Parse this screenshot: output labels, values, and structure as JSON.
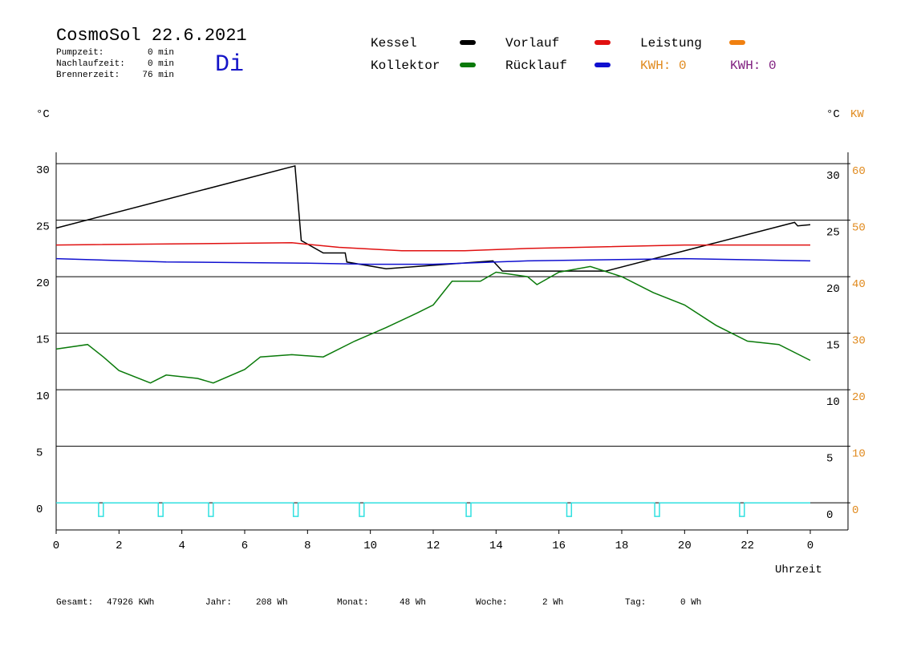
{
  "header": {
    "title": "CosmoSol 22.6.2021",
    "day": "Di",
    "stats": [
      {
        "label": "Pumpzeit:",
        "value": "0 min"
      },
      {
        "label": "Nachlaufzeit:",
        "value": "0 min"
      },
      {
        "label": "Brennerzeit:",
        "value": "76 min"
      }
    ],
    "kwh": [
      {
        "text": "KWH: 0",
        "color": "#e08a1e"
      },
      {
        "text": "KWH: 0",
        "color": "#802080"
      }
    ]
  },
  "chart_data": {
    "type": "line",
    "y_unit": "°C",
    "y2_unit_left": "°C",
    "y2_unit": "KW",
    "x_label": "Uhrzeit",
    "xlim": [
      0,
      25.2
    ],
    "ylim": [
      -2.4,
      31
    ],
    "y2lim": [
      -4.8,
      62
    ],
    "xticks": [
      0,
      2,
      4,
      6,
      8,
      10,
      12,
      14,
      16,
      18,
      20,
      22,
      {
        "value": 24,
        "label": "0"
      }
    ],
    "yticks": [
      0,
      5,
      10,
      15,
      20,
      25,
      30
    ],
    "y2ticks": [
      0,
      10,
      20,
      30,
      40,
      50,
      60
    ],
    "grid": true,
    "series": [
      {
        "name": "Kessel",
        "color": "#000000",
        "x": [
          0,
          7.6,
          7.8,
          8.5,
          9.2,
          9.25,
          10.5,
          13.9,
          14.2,
          17.5,
          23.5,
          23.6,
          24
        ],
        "values": [
          24.3,
          29.8,
          23.2,
          22.1,
          22.1,
          21.3,
          20.7,
          21.4,
          20.5,
          20.5,
          24.8,
          24.5,
          24.6
        ]
      },
      {
        "name": "Kollektor",
        "color": "#0a7a0a",
        "x": [
          0,
          1,
          1.5,
          2,
          3,
          3.5,
          4.5,
          5,
          6,
          6.5,
          7.5,
          8.5,
          9.5,
          10.5,
          11.5,
          12,
          12.6,
          13.5,
          14,
          15,
          15.3,
          16,
          17,
          18,
          19,
          20,
          21,
          22,
          23,
          24
        ],
        "values": [
          13.6,
          14.0,
          12.9,
          11.7,
          10.6,
          11.3,
          11.0,
          10.6,
          11.8,
          12.9,
          13.1,
          12.9,
          14.3,
          15.5,
          16.8,
          17.5,
          19.6,
          19.6,
          20.4,
          20.0,
          19.3,
          20.4,
          20.9,
          20.0,
          18.6,
          17.5,
          15.7,
          14.3,
          14.0,
          12.6
        ]
      },
      {
        "name": "Vorlauf",
        "color": "#e01010",
        "x": [
          0,
          7.5,
          9,
          11,
          13,
          15,
          20,
          24
        ],
        "values": [
          22.8,
          23.0,
          22.6,
          22.3,
          22.3,
          22.5,
          22.8,
          22.8
        ]
      },
      {
        "name": "Rücklauf",
        "color": "#1010d0",
        "x": [
          0,
          3.5,
          8,
          10,
          12,
          15,
          20,
          24
        ],
        "values": [
          21.6,
          21.3,
          21.2,
          21.1,
          21.1,
          21.4,
          21.6,
          21.4
        ]
      },
      {
        "name": "Leistung",
        "color": "#f08010",
        "x": [],
        "values": []
      },
      {
        "color": "#30e0e0",
        "x": [
          0,
          1.35,
          1.35,
          1.5,
          1.5,
          3.25,
          3.25,
          3.4,
          3.4,
          4.85,
          4.85,
          5.0,
          5.0,
          7.55,
          7.55,
          7.7,
          7.7,
          9.65,
          9.65,
          9.8,
          9.8,
          13.05,
          13.05,
          13.2,
          13.2,
          16.25,
          16.25,
          16.4,
          16.4,
          19.05,
          19.05,
          19.2,
          19.2,
          21.75,
          21.75,
          21.9,
          21.9,
          24
        ],
        "values": [
          0,
          0,
          -1.2,
          -1.2,
          0,
          0,
          -1.2,
          -1.2,
          0,
          0,
          -1.2,
          -1.2,
          0,
          0,
          -1.2,
          -1.2,
          0,
          0,
          -1.2,
          -1.2,
          0,
          0,
          -1.2,
          -1.2,
          0,
          0,
          -1.2,
          -1.2,
          0,
          0,
          -1.2,
          -1.2,
          0,
          0,
          -1.2,
          -1.2,
          0,
          0
        ]
      }
    ]
  },
  "footer": [
    {
      "label": "Gesamt:",
      "value": "47926 KWh"
    },
    {
      "label": "Jahr:",
      "value": "208 Wh"
    },
    {
      "label": "Monat:",
      "value": "48 Wh"
    },
    {
      "label": "Woche:",
      "value": "2 Wh"
    },
    {
      "label": "Tag:",
      "value": "0 Wh"
    }
  ]
}
